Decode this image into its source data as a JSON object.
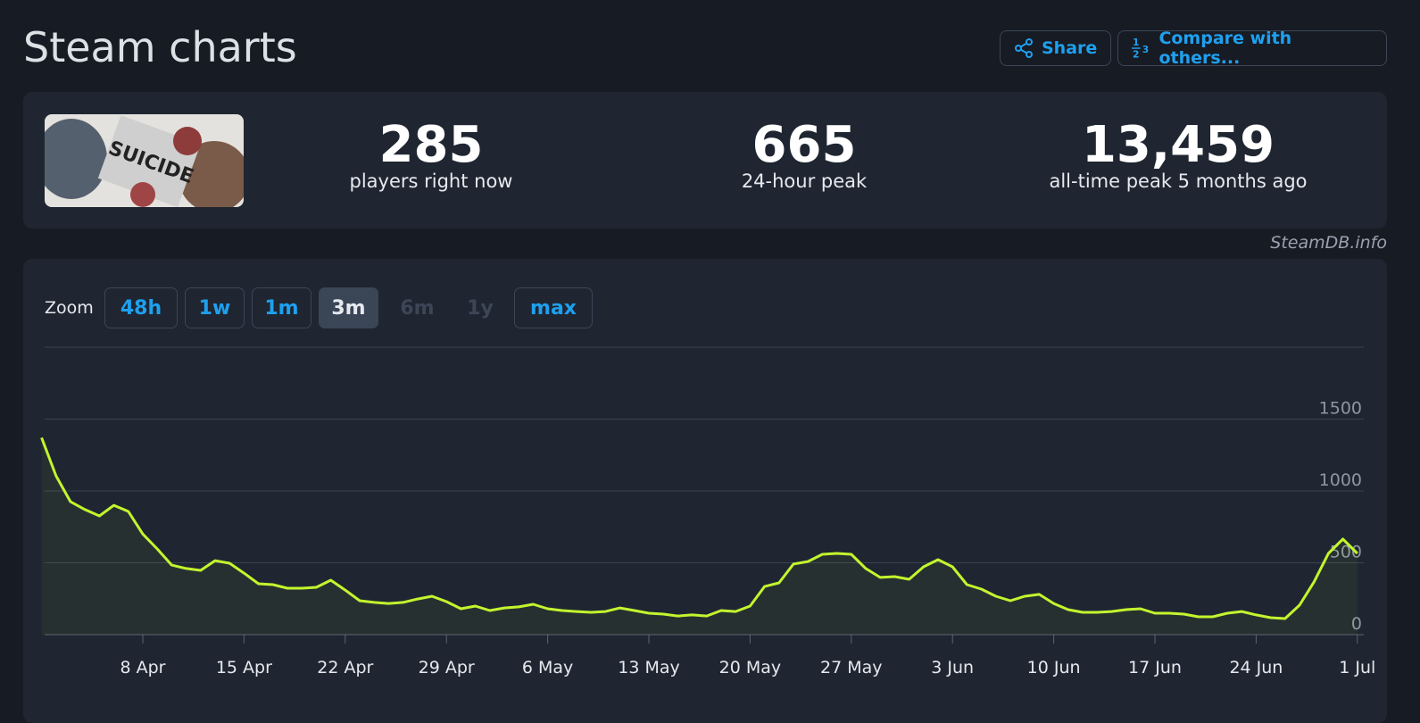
{
  "header": {
    "title": "Steam charts",
    "share": "Share",
    "compare": "Compare with others..."
  },
  "stats": [
    {
      "value": "285",
      "label": "players right now"
    },
    {
      "value": "665",
      "label": "24-hour peak"
    },
    {
      "value": "13,459",
      "label": "all-time peak 5 months ago"
    }
  ],
  "credit": "SteamDB.info",
  "zoom": {
    "label": "Zoom",
    "buttons": [
      {
        "label": "48h",
        "state": "enabled"
      },
      {
        "label": "1w",
        "state": "enabled"
      },
      {
        "label": "1m",
        "state": "enabled"
      },
      {
        "label": "3m",
        "state": "active"
      },
      {
        "label": "6m",
        "state": "disabled"
      },
      {
        "label": "1y",
        "state": "disabled"
      },
      {
        "label": "max",
        "state": "enabled"
      }
    ]
  },
  "chart_data": {
    "type": "line",
    "color": "#c3f52e",
    "grid": true,
    "x": [
      "1 Apr",
      "2 Apr",
      "3 Apr",
      "4 Apr",
      "5 Apr",
      "6 Apr",
      "7 Apr",
      "8 Apr",
      "9 Apr",
      "10 Apr",
      "11 Apr",
      "12 Apr",
      "13 Apr",
      "14 Apr",
      "15 Apr",
      "16 Apr",
      "17 Apr",
      "18 Apr",
      "19 Apr",
      "20 Apr",
      "21 Apr",
      "22 Apr",
      "23 Apr",
      "24 Apr",
      "25 Apr",
      "26 Apr",
      "27 Apr",
      "28 Apr",
      "29 Apr",
      "30 Apr",
      "1 May",
      "2 May",
      "3 May",
      "4 May",
      "5 May",
      "6 May",
      "7 May",
      "8 May",
      "9 May",
      "10 May",
      "11 May",
      "12 May",
      "13 May",
      "14 May",
      "15 May",
      "16 May",
      "17 May",
      "18 May",
      "19 May",
      "20 May",
      "21 May",
      "22 May",
      "23 May",
      "24 May",
      "25 May",
      "26 May",
      "27 May",
      "28 May",
      "29 May",
      "30 May",
      "31 May",
      "1 Jun",
      "2 Jun",
      "3 Jun",
      "4 Jun",
      "5 Jun",
      "6 Jun",
      "7 Jun",
      "8 Jun",
      "9 Jun",
      "10 Jun",
      "11 Jun",
      "12 Jun",
      "13 Jun",
      "14 Jun",
      "15 Jun",
      "16 Jun",
      "17 Jun",
      "18 Jun",
      "19 Jun",
      "20 Jun",
      "21 Jun",
      "22 Jun",
      "23 Jun",
      "24 Jun",
      "25 Jun",
      "26 Jun",
      "27 Jun",
      "28 Jun",
      "29 Jun",
      "30 Jun",
      "1 Jul"
    ],
    "values": [
      1370,
      1105,
      925,
      870,
      826,
      900,
      857,
      700,
      596,
      484,
      460,
      447,
      515,
      497,
      428,
      354,
      348,
      323,
      323,
      329,
      379,
      310,
      236,
      224,
      217,
      224,
      248,
      267,
      230,
      180,
      199,
      168,
      186,
      193,
      211,
      180,
      168,
      161,
      155,
      161,
      186,
      168,
      149,
      143,
      130,
      137,
      130,
      168,
      161,
      199,
      335,
      360,
      491,
      509,
      559,
      565,
      559,
      460,
      398,
      404,
      385,
      472,
      522,
      472,
      348,
      317,
      267,
      236,
      267,
      280,
      217,
      174,
      155,
      155,
      161,
      174,
      180,
      149,
      149,
      143,
      124,
      124,
      149,
      161,
      137,
      118,
      112,
      205,
      366,
      565,
      665,
      565
    ],
    "xticks": [
      "8 Apr",
      "15 Apr",
      "22 Apr",
      "29 Apr",
      "6 May",
      "13 May",
      "20 May",
      "27 May",
      "3 Jun",
      "10 Jun",
      "17 Jun",
      "24 Jun",
      "1 Jul"
    ],
    "ylim": [
      0,
      2000
    ],
    "yticks": [
      0,
      500,
      1000,
      1500
    ]
  }
}
